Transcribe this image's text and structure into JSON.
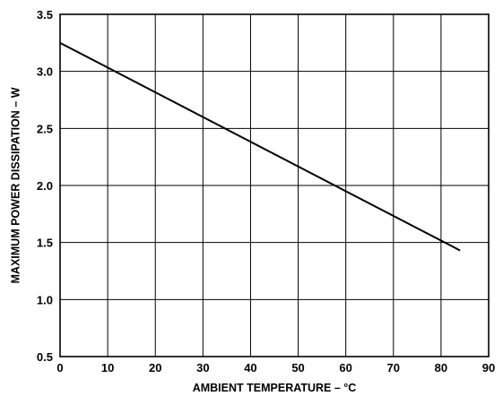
{
  "chart_data": {
    "type": "line",
    "title": "",
    "xlabel": "AMBIENT TEMPERATURE – °C",
    "ylabel": "MAXIMUM POWER DISSIPATION – W",
    "xlim": [
      0,
      90
    ],
    "ylim": [
      0.5,
      3.5
    ],
    "x_ticks": [
      0,
      10,
      20,
      30,
      40,
      50,
      60,
      70,
      80,
      90
    ],
    "x_tick_labels": [
      "0",
      "10",
      "20",
      "30",
      "40",
      "50",
      "60",
      "70",
      "80",
      "90"
    ],
    "y_ticks": [
      0.5,
      1.0,
      1.5,
      2.0,
      2.5,
      3.0,
      3.5
    ],
    "y_tick_labels": [
      "0.5",
      "1.0",
      "1.5",
      "2.0",
      "2.5",
      "3.0",
      "3.5"
    ],
    "grid": true,
    "legend": "none",
    "series": [
      {
        "x": [
          0,
          84
        ],
        "y": [
          3.25,
          1.43
        ],
        "color": "#000000"
      }
    ]
  }
}
